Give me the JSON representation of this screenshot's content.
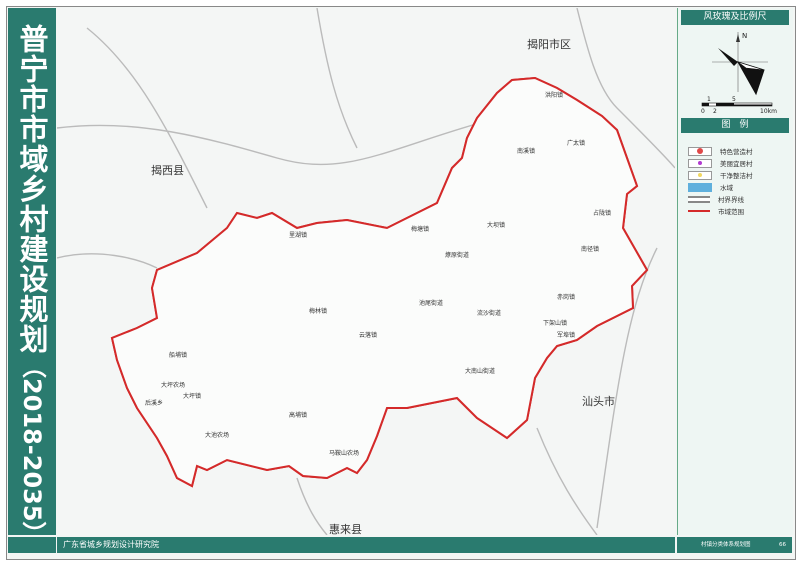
{
  "title": {
    "main": "普宁市市域乡村建设规划",
    "years": "（2018-2035）"
  },
  "map": {
    "neighbors": [
      {
        "name": "揭阳市区",
        "key": "jieyang"
      },
      {
        "name": "揭西县",
        "key": "jiexi"
      },
      {
        "name": "惠来县",
        "key": "huilai"
      },
      {
        "name": "汕头市",
        "key": "shantou"
      }
    ],
    "towns": [
      "洪阳镇",
      "广太镇",
      "南溪镇",
      "大坝镇",
      "梅塘镇",
      "里湖镇",
      "燎原街道",
      "南径镇",
      "占陇镇",
      "赤岗镇",
      "流沙街道",
      "池尾街道",
      "下架山镇",
      "军埠镇",
      "云落镇",
      "梅林镇",
      "大南山街道",
      "船埔镇",
      "大坪农场",
      "后溪乡",
      "大坪镇",
      "大池农场",
      "高埔镇",
      "马鞍山农场"
    ],
    "colors": {
      "boundary": "#d42a2a",
      "terrain": "#3f8a4f",
      "featured": "#e04848",
      "beautiful": "#b23ad0",
      "clean": "#f2e27a",
      "water": "#6fb8e0"
    }
  },
  "panel": {
    "compass_title": "风玫瑰及比例尺",
    "north": "N",
    "scale": {
      "top_labels": [
        "1",
        "5"
      ],
      "bottom_labels": [
        "0",
        "2",
        "10km"
      ]
    },
    "legend_title": "图　例",
    "legend": [
      {
        "label": "特色营造村",
        "icon": "red-dot"
      },
      {
        "label": "美丽宜居村",
        "icon": "magenta-dot"
      },
      {
        "label": "干净整洁村",
        "icon": "yellow-dot"
      },
      {
        "label": "水域",
        "icon": "water-swatch"
      },
      {
        "label": "村界界线",
        "icon": "gray-double-line"
      },
      {
        "label": "市域范围",
        "icon": "red-line"
      }
    ]
  },
  "footer": {
    "org": "广东省城乡规划设计研究院",
    "sheet_title": "村镇分类体系规划图",
    "page": "66"
  }
}
